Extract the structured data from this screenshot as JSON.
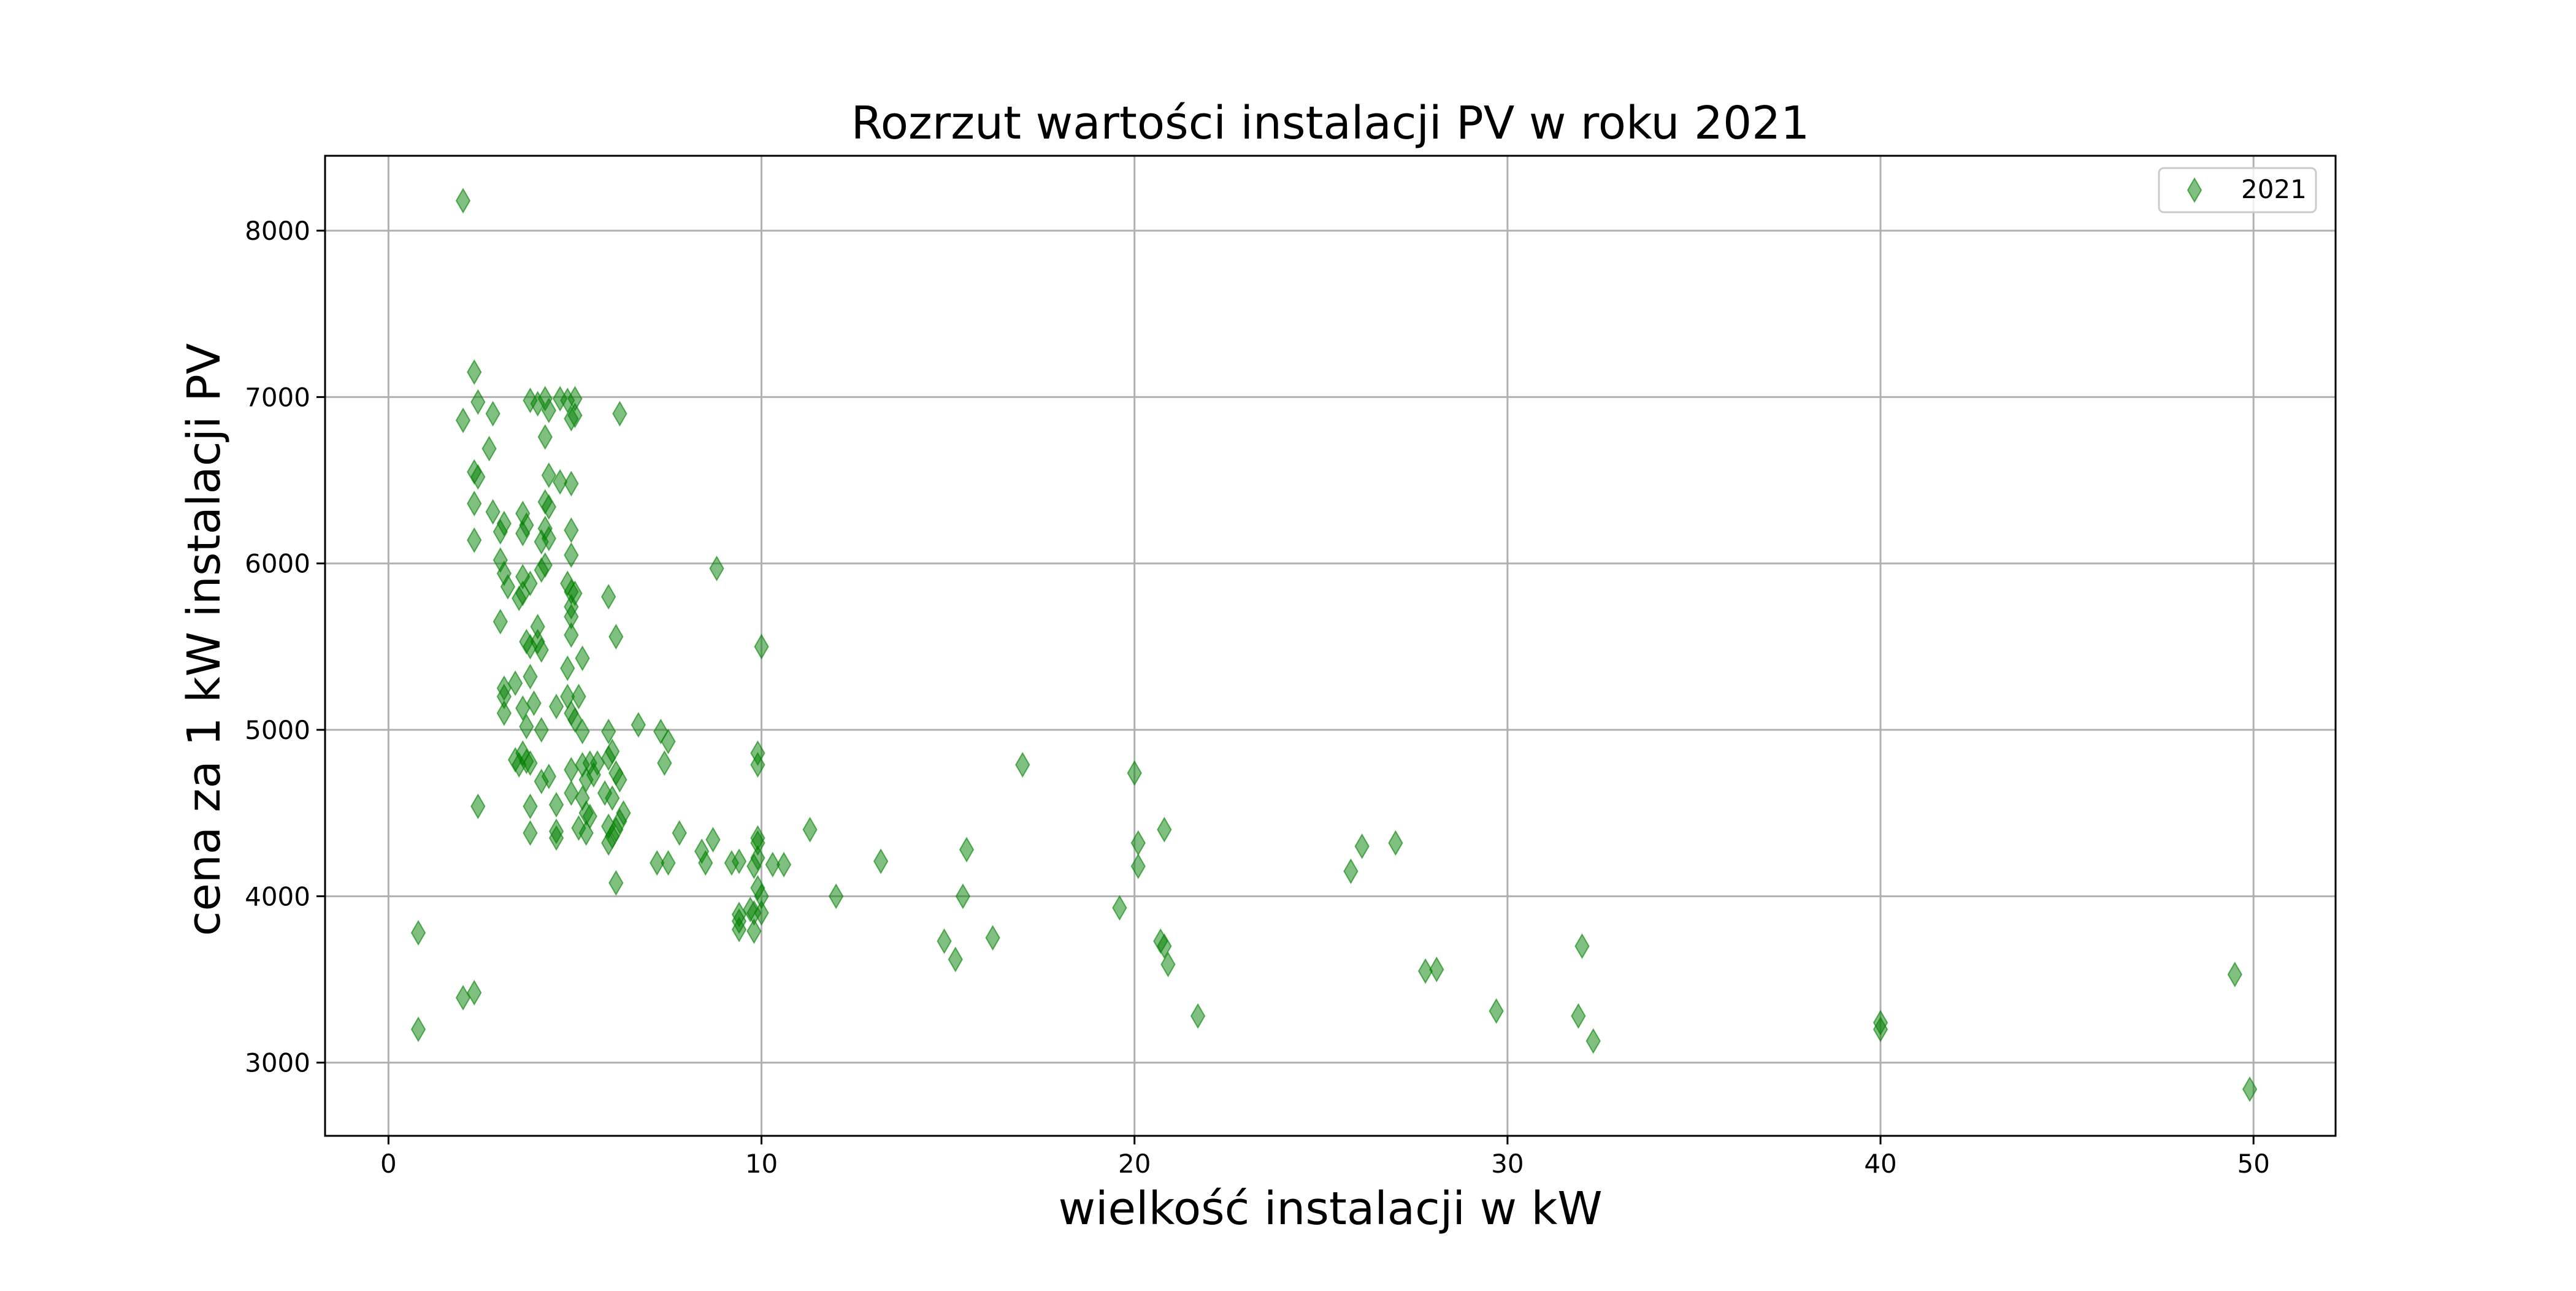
{
  "chart_data": {
    "type": "scatter",
    "title": "Rozrzut wartości instalacji PV w roku 2021",
    "xlabel": "wielkość instalacji w kW",
    "ylabel": "cena za 1 kW instalacji PV",
    "xlim": [
      -1.7,
      52.2
    ],
    "ylim": [
      2560,
      8450
    ],
    "xticks": [
      "0",
      "10",
      "20",
      "30",
      "40",
      "50"
    ],
    "yticks": [
      "3000",
      "4000",
      "5000",
      "6000",
      "7000",
      "8000"
    ],
    "grid": true,
    "legend_position": "top-right",
    "series": [
      {
        "name": "2021",
        "marker": "diamond",
        "color": "#008000",
        "points": [
          [
            2.0,
            8180
          ],
          [
            2.3,
            7150
          ],
          [
            2.4,
            6970
          ],
          [
            2.0,
            6860
          ],
          [
            2.8,
            6900
          ],
          [
            2.7,
            6690
          ],
          [
            2.3,
            6550
          ],
          [
            2.4,
            6520
          ],
          [
            2.3,
            6360
          ],
          [
            2.8,
            6310
          ],
          [
            3.1,
            6240
          ],
          [
            3.0,
            6190
          ],
          [
            2.3,
            6140
          ],
          [
            3.0,
            6020
          ],
          [
            3.1,
            5940
          ],
          [
            3.2,
            5860
          ],
          [
            3.0,
            5650
          ],
          [
            3.1,
            5250
          ],
          [
            3.1,
            5200
          ],
          [
            3.1,
            5100
          ],
          [
            3.4,
            4820
          ],
          [
            3.5,
            4790
          ],
          [
            3.7,
            4810
          ],
          [
            2.4,
            4540
          ],
          [
            0.8,
            3780
          ],
          [
            0.8,
            3200
          ],
          [
            2.0,
            3390
          ],
          [
            2.3,
            3420
          ],
          [
            3.8,
            6980
          ],
          [
            4.0,
            6960
          ],
          [
            4.2,
            6990
          ],
          [
            4.3,
            6920
          ],
          [
            4.6,
            6990
          ],
          [
            4.8,
            6980
          ],
          [
            5.0,
            6990
          ],
          [
            4.9,
            6870
          ],
          [
            5.0,
            6890
          ],
          [
            6.2,
            6900
          ],
          [
            4.2,
            6760
          ],
          [
            4.3,
            6530
          ],
          [
            4.6,
            6490
          ],
          [
            4.9,
            6480
          ],
          [
            4.2,
            6370
          ],
          [
            4.3,
            6340
          ],
          [
            3.6,
            6300
          ],
          [
            3.7,
            6230
          ],
          [
            4.2,
            6210
          ],
          [
            4.3,
            6150
          ],
          [
            3.6,
            6180
          ],
          [
            4.9,
            6200
          ],
          [
            4.1,
            6130
          ],
          [
            4.9,
            6050
          ],
          [
            4.2,
            5990
          ],
          [
            4.1,
            5960
          ],
          [
            3.6,
            5920
          ],
          [
            3.8,
            5880
          ],
          [
            3.6,
            5820
          ],
          [
            3.5,
            5790
          ],
          [
            4.8,
            5880
          ],
          [
            4.9,
            5830
          ],
          [
            5.0,
            5820
          ],
          [
            5.9,
            5800
          ],
          [
            4.9,
            5740
          ],
          [
            4.9,
            5680
          ],
          [
            4.0,
            5620
          ],
          [
            3.7,
            5530
          ],
          [
            3.8,
            5500
          ],
          [
            4.0,
            5530
          ],
          [
            4.1,
            5480
          ],
          [
            4.9,
            5570
          ],
          [
            6.1,
            5560
          ],
          [
            5.2,
            5430
          ],
          [
            4.8,
            5370
          ],
          [
            3.8,
            5320
          ],
          [
            3.4,
            5280
          ],
          [
            4.8,
            5200
          ],
          [
            5.1,
            5200
          ],
          [
            3.9,
            5160
          ],
          [
            3.6,
            5130
          ],
          [
            4.5,
            5140
          ],
          [
            4.9,
            5100
          ],
          [
            5.0,
            5060
          ],
          [
            3.7,
            5020
          ],
          [
            4.1,
            5000
          ],
          [
            5.2,
            4990
          ],
          [
            5.9,
            4990
          ],
          [
            6.7,
            5030
          ],
          [
            7.3,
            4990
          ],
          [
            7.5,
            4930
          ],
          [
            3.8,
            4800
          ],
          [
            3.6,
            4860
          ],
          [
            5.2,
            4790
          ],
          [
            5.4,
            4800
          ],
          [
            5.6,
            4800
          ],
          [
            5.9,
            4830
          ],
          [
            6.0,
            4870
          ],
          [
            7.4,
            4800
          ],
          [
            4.9,
            4760
          ],
          [
            4.1,
            4690
          ],
          [
            4.3,
            4720
          ],
          [
            5.3,
            4700
          ],
          [
            5.5,
            4730
          ],
          [
            6.1,
            4740
          ],
          [
            6.2,
            4700
          ],
          [
            4.9,
            4620
          ],
          [
            5.2,
            4590
          ],
          [
            5.8,
            4620
          ],
          [
            6.0,
            4590
          ],
          [
            3.8,
            4540
          ],
          [
            4.5,
            4550
          ],
          [
            5.3,
            4500
          ],
          [
            5.4,
            4480
          ],
          [
            6.3,
            4500
          ],
          [
            6.2,
            4450
          ],
          [
            5.1,
            4410
          ],
          [
            5.3,
            4380
          ],
          [
            5.9,
            4420
          ],
          [
            6.0,
            4360
          ],
          [
            6.1,
            4400
          ],
          [
            3.8,
            4380
          ],
          [
            4.5,
            4390
          ],
          [
            4.5,
            4350
          ],
          [
            5.9,
            4320
          ],
          [
            7.8,
            4380
          ],
          [
            8.7,
            4340
          ],
          [
            8.4,
            4270
          ],
          [
            8.5,
            4200
          ],
          [
            7.5,
            4200
          ],
          [
            7.2,
            4200
          ],
          [
            6.1,
            4080
          ],
          [
            9.2,
            4200
          ],
          [
            9.4,
            4210
          ],
          [
            9.8,
            4180
          ],
          [
            9.9,
            4230
          ],
          [
            9.9,
            4320
          ],
          [
            9.9,
            4350
          ],
          [
            10.3,
            4190
          ],
          [
            10.6,
            4190
          ],
          [
            11.3,
            4400
          ],
          [
            13.2,
            4210
          ],
          [
            12.0,
            4000
          ],
          [
            9.9,
            4050
          ],
          [
            10.0,
            4000
          ],
          [
            9.7,
            3920
          ],
          [
            9.8,
            3900
          ],
          [
            10.0,
            3900
          ],
          [
            9.4,
            3890
          ],
          [
            9.4,
            3850
          ],
          [
            9.4,
            3800
          ],
          [
            9.8,
            3790
          ],
          [
            9.9,
            4790
          ],
          [
            9.9,
            4860
          ],
          [
            8.8,
            5970
          ],
          [
            10.0,
            5500
          ],
          [
            15.5,
            4280
          ],
          [
            15.4,
            4000
          ],
          [
            14.9,
            3730
          ],
          [
            15.2,
            3620
          ],
          [
            16.2,
            3750
          ],
          [
            17.0,
            4790
          ],
          [
            20.0,
            4740
          ],
          [
            20.1,
            4320
          ],
          [
            20.1,
            4180
          ],
          [
            20.8,
            4400
          ],
          [
            19.6,
            3930
          ],
          [
            20.7,
            3730
          ],
          [
            20.8,
            3700
          ],
          [
            20.9,
            3590
          ],
          [
            21.7,
            3280
          ],
          [
            25.8,
            4150
          ],
          [
            26.1,
            4300
          ],
          [
            27.0,
            4320
          ],
          [
            27.8,
            3550
          ],
          [
            28.1,
            3560
          ],
          [
            29.7,
            3310
          ],
          [
            31.9,
            3280
          ],
          [
            32.0,
            3700
          ],
          [
            32.3,
            3130
          ],
          [
            40.0,
            3200
          ],
          [
            40.0,
            3240
          ],
          [
            49.5,
            3530
          ],
          [
            49.9,
            2840
          ]
        ]
      }
    ]
  }
}
